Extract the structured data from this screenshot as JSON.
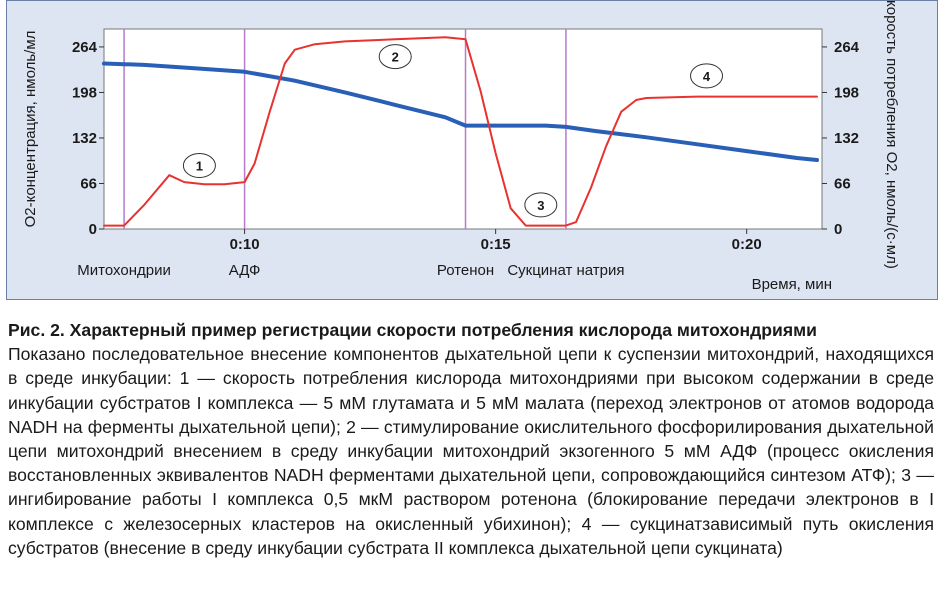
{
  "chart_data": {
    "type": "line",
    "y_left_label": "О2-концентрация, нмоль/мл",
    "y_right_label": "Скорость потребления О2, нмоль/(с·мл)",
    "xlabel": "Время, мин",
    "x_ticks": [
      "0:10",
      "0:15",
      "0:20"
    ],
    "y_ticks": [
      "264",
      "198",
      "132",
      "66",
      "0"
    ],
    "ylim": [
      0,
      290
    ],
    "xlim_minutes": [
      7.2,
      21.5
    ],
    "events": [
      {
        "label": "Митохондрии",
        "minute": 7.6
      },
      {
        "label": "АДФ",
        "minute": 10.0
      },
      {
        "label": "Ротенон",
        "minute": 14.4
      },
      {
        "label": "Сукцинат натрия",
        "minute": 16.4
      }
    ],
    "markers": [
      {
        "label": "1",
        "minute": 9.1,
        "value": 92
      },
      {
        "label": "2",
        "minute": 13.0,
        "value": 250
      },
      {
        "label": "3",
        "minute": 15.9,
        "value": 35
      },
      {
        "label": "4",
        "minute": 19.2,
        "value": 222
      }
    ],
    "series": [
      {
        "color": "#2a5fb8",
        "x": [
          7.2,
          8.0,
          9.0,
          10.0,
          11.0,
          12.0,
          13.0,
          14.0,
          14.4,
          15.0,
          16.0,
          16.4,
          17.0,
          18.0,
          19.0,
          20.0,
          21.0,
          21.4
        ],
        "values": [
          240,
          238,
          233,
          228,
          215,
          198,
          180,
          162,
          150,
          150,
          150,
          148,
          142,
          133,
          123,
          113,
          103,
          100
        ]
      },
      {
        "color": "#e8322f",
        "x": [
          7.2,
          7.6,
          8.0,
          8.5,
          8.8,
          9.2,
          9.6,
          10.0,
          10.2,
          10.5,
          10.8,
          11.0,
          11.4,
          12.0,
          13.0,
          14.0,
          14.4,
          14.7,
          15.0,
          15.3,
          15.6,
          15.8,
          16.0,
          16.4,
          16.6,
          16.9,
          17.2,
          17.5,
          17.8,
          18.0,
          19.0,
          20.0,
          21.0,
          21.4
        ],
        "values": [
          5,
          5,
          35,
          78,
          68,
          65,
          65,
          68,
          95,
          170,
          240,
          260,
          268,
          272,
          275,
          278,
          275,
          200,
          110,
          30,
          5,
          5,
          5,
          5,
          10,
          60,
          120,
          170,
          187,
          190,
          192,
          192,
          192,
          192
        ]
      }
    ]
  },
  "caption": {
    "title": "Рис. 2. Характерный пример регистрации скорости потребления кислорода митохондриями",
    "text": "Показано последовательное внесение компонентов дыхательной цепи к суспензии митохондрий, находящихся в среде инкубации: 1 — скорость потребления кислорода митохондриями при высоком содержании в среде инкубации субстратов I комплекса — 5 мМ глутамата и 5 мМ малата (переход электронов от атомов водорода NADH на ферменты дыхательной цепи); 2 — стимулирование окислительного фосфорилирования дыхательной цепи митохондрий внесением в среду инкубации митохондрий экзогенного 5 мМ АДФ (процесс окисления восстановленных эквивалентов NADH ферментами дыхательной цепи, сопровождающийся синтезом АТФ); 3 — ингибирование работы I комплекса 0,5 мкМ раствором ротенона (блокирование передачи электронов в I комплексе с железосерных кластеров на окисленный убихинон); 4 — сукцинатзависимый путь окисления субстратов (внесение в среду инкубации субстрата II комплекса дыхательной цепи сукцината)"
  }
}
